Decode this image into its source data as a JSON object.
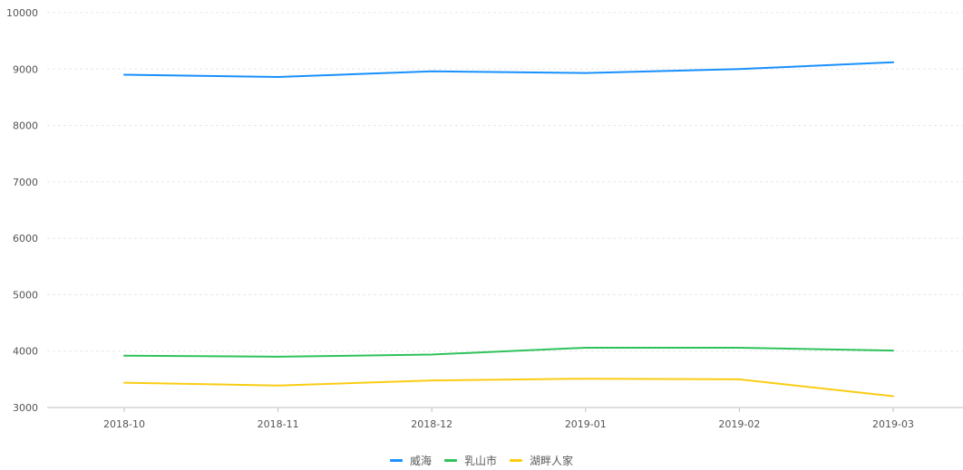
{
  "chart_data": {
    "type": "line",
    "categories": [
      "2018-10",
      "2018-11",
      "2018-12",
      "2019-01",
      "2019-02",
      "2019-03"
    ],
    "series": [
      {
        "name": "威海",
        "color": "#1890ff",
        "values": [
          8900,
          8860,
          8960,
          8930,
          9000,
          9120
        ]
      },
      {
        "name": "乳山市",
        "color": "#2fc25b",
        "values": [
          3920,
          3900,
          3940,
          4060,
          4060,
          4010
        ]
      },
      {
        "name": "湖畔人家",
        "color": "#facc14",
        "values": [
          3440,
          3390,
          3480,
          3510,
          3500,
          3200
        ]
      }
    ],
    "yticks": [
      "3000",
      "4000",
      "5000",
      "6000",
      "7000",
      "8000",
      "9000",
      "10000"
    ],
    "ylim": [
      3000,
      10000
    ],
    "grid": true,
    "legend_position": "bottom-center",
    "colors": {
      "grid": "#e8e8e8",
      "axis": "#bfbfbf",
      "tick_text": "#545454"
    }
  }
}
